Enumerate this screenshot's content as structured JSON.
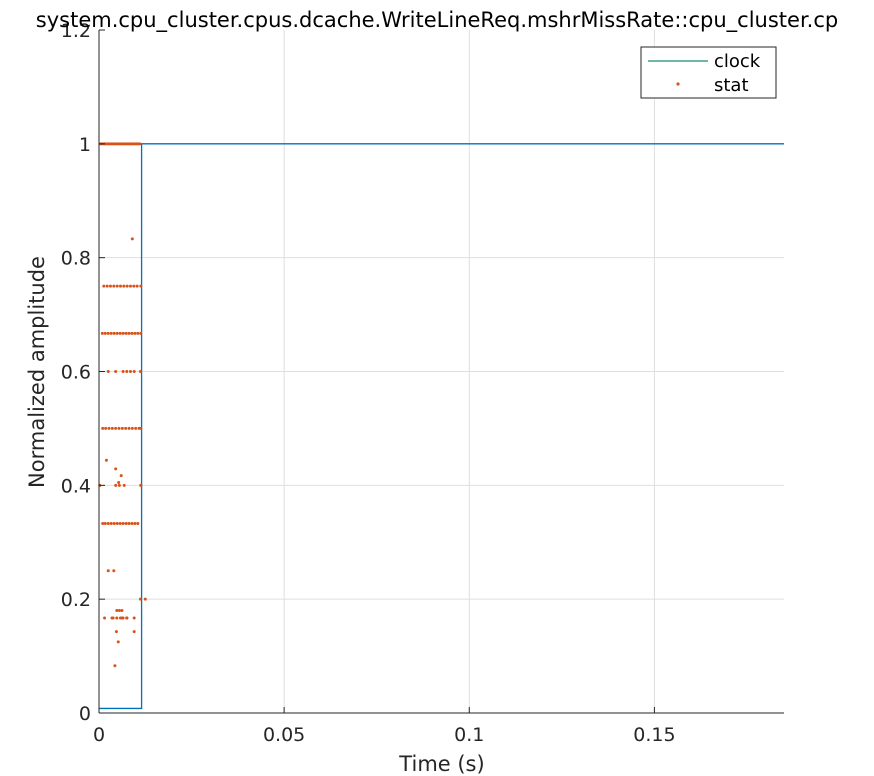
{
  "chart_data": {
    "type": "line",
    "title": "system.cpu_cluster.cpus.dcache.WriteLineReq.mshrMissRate::cpu_cluster.cp",
    "xlabel": "Time (s)",
    "ylabel": "Normalized amplitude",
    "xlim": [
      0,
      0.185
    ],
    "ylim": [
      0,
      1.2
    ],
    "xticks": [
      0,
      0.05,
      0.1,
      0.15
    ],
    "xtick_labels": [
      "0",
      "0.05",
      "0.1",
      "0.15"
    ],
    "yticks": [
      0,
      0.2,
      0.4,
      0.6,
      0.8,
      1,
      1.2
    ],
    "ytick_labels": [
      "0",
      "0.2",
      "0.4",
      "0.6",
      "0.8",
      "1",
      "1.2"
    ],
    "grid": true,
    "legend_position": "top-right",
    "series": [
      {
        "name": "clock",
        "style": "line",
        "color": "#0072BD",
        "legend_color": "#1a8a6e",
        "x": [
          0,
          0.0115,
          0.0115,
          0.185
        ],
        "y": [
          0.008,
          0.008,
          1,
          1
        ]
      },
      {
        "name": "stat",
        "style": "dots",
        "color": "#D95319",
        "x": [
          0.0005,
          0.001,
          0.0015,
          0.002,
          0.0025,
          0.003,
          0.0035,
          0.004,
          0.0045,
          0.005,
          0.0055,
          0.006,
          0.0065,
          0.007,
          0.0075,
          0.008,
          0.0085,
          0.009,
          0.0095,
          0.01,
          0.0105,
          0.011,
          0.0013,
          0.0022,
          0.0031,
          0.004,
          0.0049,
          0.0058,
          0.0067,
          0.0076,
          0.0085,
          0.0094,
          0.0103,
          0.0113,
          0.0009,
          0.0017,
          0.0025,
          0.0033,
          0.0041,
          0.0049,
          0.0057,
          0.0065,
          0.0073,
          0.0081,
          0.0089,
          0.0097,
          0.0105,
          0.0113,
          0.0025,
          0.0045,
          0.0065,
          0.0075,
          0.0085,
          0.0095,
          0.0112,
          0.001,
          0.0018,
          0.0027,
          0.0036,
          0.0045,
          0.0054,
          0.0063,
          0.0072,
          0.0081,
          0.009,
          0.0099,
          0.0108,
          0.0113,
          0.0002,
          0.0045,
          0.0055,
          0.0068,
          0.0113,
          0.001,
          0.0017,
          0.0025,
          0.0033,
          0.0041,
          0.0049,
          0.0057,
          0.0065,
          0.0073,
          0.0081,
          0.0089,
          0.0097,
          0.0105,
          0.002,
          0.0045,
          0.0025,
          0.004,
          0.0048,
          0.0055,
          0.0062,
          0.0075,
          0.0095,
          0.0112,
          0.0035,
          0.0048,
          0.0062,
          0.0075,
          0.0095,
          0.0125,
          0.0015,
          0.0043,
          0.0047,
          0.0038,
          0.0052,
          0.009,
          0.0113,
          0.0075,
          0.0065,
          0.0058,
          0.006,
          0.0053
        ],
        "y": [
          1,
          1,
          1,
          1,
          1,
          1,
          1,
          1,
          1,
          1,
          1,
          1,
          1,
          1,
          1,
          1,
          1,
          1,
          1,
          1,
          1,
          1,
          0.75,
          0.75,
          0.75,
          0.75,
          0.75,
          0.75,
          0.75,
          0.75,
          0.75,
          0.75,
          0.75,
          0.75,
          0.667,
          0.667,
          0.667,
          0.667,
          0.667,
          0.667,
          0.667,
          0.667,
          0.667,
          0.667,
          0.667,
          0.667,
          0.667,
          0.667,
          0.6,
          0.6,
          0.6,
          0.6,
          0.6,
          0.6,
          0.6,
          0.5,
          0.5,
          0.5,
          0.5,
          0.5,
          0.5,
          0.5,
          0.5,
          0.5,
          0.5,
          0.5,
          0.5,
          0.5,
          0.4,
          0.4,
          0.4,
          0.4,
          0.4,
          0.333,
          0.333,
          0.333,
          0.333,
          0.333,
          0.333,
          0.333,
          0.333,
          0.333,
          0.333,
          0.333,
          0.333,
          0.333,
          0.444,
          0.429,
          0.25,
          0.25,
          0.18,
          0.18,
          0.18,
          0.167,
          0.167,
          0.2,
          0.167,
          0.167,
          0.167,
          0.167,
          0.143,
          0.2,
          0.167,
          0.083,
          0.143,
          0.167,
          0.125,
          0.833,
          0.4,
          0.167,
          0.167,
          0.167,
          0.417,
          0.405
        ]
      }
    ]
  }
}
